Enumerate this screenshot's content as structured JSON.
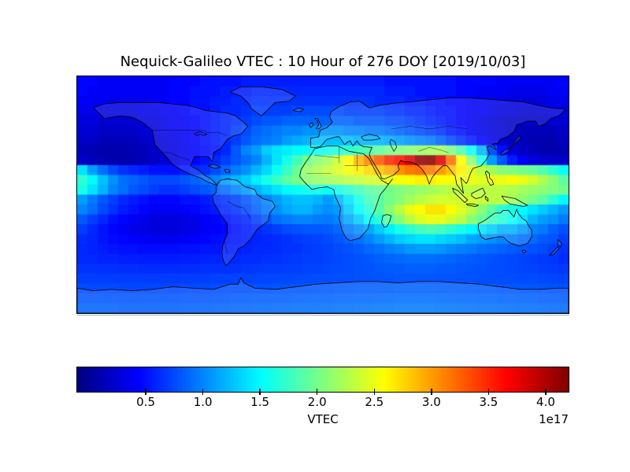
{
  "figure": {
    "title": "Nequick-Galileo VTEC : 10 Hour of 276 DOY [2019/10/03]",
    "background": "#ffffff"
  },
  "colorbar": {
    "label": "VTEC",
    "offset_label": "1e17",
    "ticks": [
      "0.5",
      "1.0",
      "1.5",
      "2.0",
      "2.5",
      "3.0",
      "3.5",
      "4.0"
    ],
    "tick_values": [
      0.5,
      1.0,
      1.5,
      2.0,
      2.5,
      3.0,
      3.5,
      4.0
    ],
    "vmin": -0.1,
    "vmax": 4.2,
    "colormap": "jet"
  },
  "chart_data": {
    "type": "heatmap",
    "title": "Nequick-Galileo VTEC : 10 Hour of 276 DOY [2019/10/03]",
    "colormap": "jet",
    "value_label": "VTEC",
    "value_scale": "1e17",
    "vmin": -0.1,
    "vmax": 4.2,
    "x_axis": {
      "name": "longitude_deg",
      "min": -180,
      "max": 180
    },
    "y_axis": {
      "name": "latitude_deg",
      "min": 90,
      "max": -90
    },
    "n_cols": 48,
    "n_rows": 24,
    "grid_off": true,
    "legend": "colorbar-horizontal-bottom",
    "values": [
      [
        0.45,
        0.45,
        0.4,
        0.4,
        0.4,
        0.4,
        0.4,
        0.4,
        0.4,
        0.45,
        0.45,
        0.45,
        0.5,
        0.5,
        0.5,
        0.5,
        0.55,
        0.55,
        0.55,
        0.55,
        0.55,
        0.55,
        0.55,
        0.55,
        0.55,
        0.55,
        0.55,
        0.55,
        0.55,
        0.55,
        0.5,
        0.5,
        0.5,
        0.5,
        0.5,
        0.5,
        0.5,
        0.45,
        0.45,
        0.45,
        0.45,
        0.4,
        0.4,
        0.4,
        0.4,
        0.4,
        0.4,
        0.45
      ],
      [
        0.45,
        0.4,
        0.4,
        0.4,
        0.4,
        0.4,
        0.4,
        0.4,
        0.4,
        0.45,
        0.45,
        0.5,
        0.5,
        0.5,
        0.55,
        0.55,
        0.55,
        0.6,
        0.6,
        0.6,
        0.6,
        0.6,
        0.6,
        0.6,
        0.6,
        0.6,
        0.6,
        0.6,
        0.6,
        0.6,
        0.55,
        0.55,
        0.55,
        0.5,
        0.5,
        0.5,
        0.5,
        0.45,
        0.45,
        0.4,
        0.4,
        0.4,
        0.35,
        0.35,
        0.35,
        0.35,
        0.4,
        0.4
      ],
      [
        0.4,
        0.4,
        0.4,
        0.35,
        0.35,
        0.35,
        0.35,
        0.4,
        0.4,
        0.45,
        0.45,
        0.5,
        0.5,
        0.55,
        0.55,
        0.6,
        0.6,
        0.65,
        0.65,
        0.65,
        0.65,
        0.65,
        0.65,
        0.65,
        0.65,
        0.65,
        0.65,
        0.65,
        0.65,
        0.6,
        0.6,
        0.6,
        0.55,
        0.55,
        0.5,
        0.5,
        0.45,
        0.45,
        0.4,
        0.4,
        0.35,
        0.35,
        0.3,
        0.3,
        0.3,
        0.3,
        0.35,
        0.35
      ],
      [
        0.35,
        0.35,
        0.3,
        0.3,
        0.3,
        0.3,
        0.35,
        0.35,
        0.4,
        0.4,
        0.45,
        0.5,
        0.5,
        0.55,
        0.6,
        0.6,
        0.65,
        0.7,
        0.7,
        0.7,
        0.7,
        0.75,
        0.75,
        0.75,
        0.75,
        0.75,
        0.7,
        0.7,
        0.7,
        0.7,
        0.65,
        0.65,
        0.6,
        0.6,
        0.55,
        0.5,
        0.5,
        0.45,
        0.4,
        0.4,
        0.35,
        0.3,
        0.3,
        0.25,
        0.25,
        0.25,
        0.3,
        0.3
      ],
      [
        0.3,
        0.3,
        0.25,
        0.25,
        0.25,
        0.25,
        0.3,
        0.3,
        0.35,
        0.4,
        0.4,
        0.45,
        0.5,
        0.55,
        0.6,
        0.65,
        0.7,
        0.75,
        0.8,
        0.8,
        0.85,
        0.85,
        0.85,
        0.85,
        0.85,
        0.85,
        0.85,
        0.8,
        0.8,
        0.8,
        0.75,
        0.75,
        0.7,
        0.65,
        0.6,
        0.55,
        0.5,
        0.45,
        0.4,
        0.35,
        0.3,
        0.25,
        0.2,
        0.2,
        0.2,
        0.2,
        0.25,
        0.25
      ],
      [
        0.25,
        0.25,
        0.2,
        0.2,
        0.2,
        0.2,
        0.25,
        0.3,
        0.35,
        0.4,
        0.4,
        0.45,
        0.5,
        0.55,
        0.6,
        0.7,
        0.75,
        0.85,
        0.9,
        0.95,
        1.0,
        1.0,
        1.05,
        1.05,
        1.05,
        1.05,
        1.0,
        1.0,
        0.95,
        0.95,
        0.9,
        0.85,
        0.8,
        0.75,
        0.7,
        0.65,
        0.55,
        0.5,
        0.4,
        0.35,
        0.3,
        0.25,
        0.2,
        0.15,
        0.15,
        0.15,
        0.15,
        0.2
      ],
      [
        0.2,
        0.2,
        0.15,
        0.15,
        0.15,
        0.15,
        0.2,
        0.25,
        0.3,
        0.35,
        0.4,
        0.45,
        0.5,
        0.55,
        0.6,
        0.7,
        0.8,
        0.9,
        0.95,
        1.0,
        1.1,
        1.15,
        1.2,
        1.25,
        1.25,
        1.25,
        1.25,
        1.2,
        1.2,
        1.2,
        1.15,
        1.1,
        1.05,
        1.0,
        0.95,
        0.85,
        0.75,
        0.65,
        0.55,
        0.45,
        0.35,
        0.25,
        0.2,
        0.15,
        0.1,
        0.1,
        0.1,
        0.15
      ],
      [
        0.15,
        0.12,
        0.1,
        0.1,
        0.1,
        0.12,
        0.15,
        0.2,
        0.28,
        0.32,
        0.38,
        0.42,
        0.48,
        0.52,
        0.6,
        0.8,
        1.0,
        1.1,
        1.3,
        1.4,
        1.45,
        1.5,
        1.55,
        1.55,
        1.6,
        1.65,
        1.7,
        1.8,
        1.85,
        1.9,
        2.0,
        2.05,
        2.1,
        2.15,
        2.2,
        2.2,
        2.05,
        1.85,
        1.55,
        1.2,
        0.8,
        0.5,
        0.3,
        0.2,
        0.15,
        0.1,
        0.1,
        0.12
      ],
      [
        0.2,
        0.15,
        0.12,
        0.1,
        0.1,
        0.12,
        0.15,
        0.2,
        0.25,
        0.3,
        0.38,
        0.45,
        0.52,
        0.6,
        0.7,
        0.8,
        0.9,
        1.0,
        1.2,
        1.4,
        1.6,
        1.8,
        2.0,
        2.1,
        2.2,
        2.4,
        2.6,
        2.9,
        3.1,
        3.3,
        3.5,
        3.6,
        3.8,
        4.1,
        4.15,
        3.8,
        3.2,
        2.6,
        2.1,
        1.6,
        1.1,
        0.8,
        0.55,
        0.4,
        0.3,
        0.25,
        0.22,
        0.2
      ],
      [
        1.4,
        1.1,
        0.9,
        0.75,
        0.65,
        0.6,
        0.55,
        0.5,
        0.5,
        0.5,
        0.55,
        0.6,
        0.65,
        0.75,
        0.85,
        0.95,
        1.05,
        1.2,
        1.35,
        1.55,
        1.75,
        1.95,
        2.15,
        2.25,
        2.35,
        2.45,
        2.55,
        2.65,
        2.75,
        2.85,
        2.95,
        3.05,
        3.15,
        3.2,
        3.15,
        3.0,
        2.85,
        2.65,
        2.45,
        2.3,
        2.2,
        2.1,
        2.05,
        2.0,
        1.95,
        1.85,
        1.7,
        1.55
      ],
      [
        1.7,
        1.5,
        1.25,
        1.05,
        0.9,
        0.85,
        0.8,
        0.75,
        0.75,
        0.75,
        0.8,
        0.85,
        0.9,
        1.0,
        1.1,
        1.2,
        1.3,
        1.45,
        1.6,
        1.75,
        1.9,
        2.0,
        2.1,
        2.15,
        2.2,
        2.25,
        2.3,
        2.35,
        2.4,
        2.45,
        2.5,
        2.55,
        2.6,
        2.65,
        2.65,
        2.6,
        2.55,
        2.5,
        2.5,
        2.45,
        2.5,
        2.5,
        2.55,
        2.5,
        2.4,
        2.25,
        2.1,
        1.9
      ],
      [
        1.6,
        1.4,
        1.2,
        1.0,
        0.9,
        0.8,
        0.75,
        0.7,
        0.65,
        0.65,
        0.7,
        0.75,
        0.8,
        0.85,
        0.9,
        1.0,
        1.1,
        1.2,
        1.3,
        1.4,
        1.5,
        1.55,
        1.6,
        1.6,
        1.55,
        1.6,
        1.7,
        1.8,
        1.9,
        1.95,
        2.0,
        2.05,
        2.1,
        2.15,
        2.2,
        2.25,
        2.3,
        2.3,
        2.3,
        2.3,
        2.3,
        2.3,
        2.25,
        2.2,
        2.15,
        2.1,
        2.05,
        2.0
      ],
      [
        1.1,
        0.95,
        0.8,
        0.7,
        0.6,
        0.55,
        0.5,
        0.45,
        0.45,
        0.45,
        0.5,
        0.5,
        0.55,
        0.6,
        0.65,
        0.7,
        0.8,
        0.9,
        1.0,
        1.1,
        1.2,
        1.25,
        1.25,
        1.2,
        1.1,
        1.2,
        1.4,
        1.6,
        1.8,
        1.9,
        2.0,
        2.1,
        2.2,
        2.3,
        2.35,
        2.4,
        2.4,
        2.4,
        2.4,
        2.35,
        2.3,
        2.3,
        2.2,
        2.1,
        2.0,
        1.9,
        1.7,
        1.5
      ],
      [
        1.0,
        0.9,
        0.75,
        0.65,
        0.55,
        0.5,
        0.45,
        0.4,
        0.4,
        0.4,
        0.42,
        0.45,
        0.5,
        0.55,
        0.6,
        0.65,
        0.75,
        0.85,
        0.95,
        1.05,
        1.15,
        1.2,
        1.2,
        1.1,
        1.05,
        1.1,
        1.3,
        1.5,
        1.7,
        1.9,
        2.1,
        2.3,
        2.5,
        2.6,
        2.7,
        2.7,
        2.6,
        2.45,
        2.3,
        2.1,
        1.9,
        1.7,
        1.6,
        1.5,
        1.4,
        1.3,
        1.2,
        1.1
      ],
      [
        0.8,
        0.7,
        0.6,
        0.5,
        0.45,
        0.4,
        0.35,
        0.3,
        0.3,
        0.3,
        0.32,
        0.35,
        0.4,
        0.45,
        0.5,
        0.55,
        0.6,
        0.7,
        0.8,
        0.9,
        0.95,
        1.0,
        1.0,
        0.95,
        0.95,
        1.0,
        1.15,
        1.3,
        1.5,
        1.7,
        1.9,
        2.1,
        2.3,
        2.45,
        2.5,
        2.5,
        2.4,
        2.3,
        2.1,
        1.95,
        1.8,
        1.7,
        1.55,
        1.4,
        1.2,
        1.1,
        1.05,
        0.95
      ],
      [
        0.7,
        0.6,
        0.52,
        0.45,
        0.4,
        0.35,
        0.32,
        0.3,
        0.3,
        0.3,
        0.32,
        0.35,
        0.4,
        0.42,
        0.45,
        0.5,
        0.55,
        0.6,
        0.65,
        0.7,
        0.75,
        0.78,
        0.8,
        0.8,
        0.82,
        0.88,
        0.95,
        1.05,
        1.15,
        1.3,
        1.45,
        1.6,
        1.7,
        1.8,
        1.85,
        1.8,
        1.7,
        1.6,
        1.5,
        1.4,
        1.3,
        1.2,
        1.2,
        1.1,
        1.0,
        0.95,
        0.85,
        0.78
      ],
      [
        0.62,
        0.58,
        0.52,
        0.48,
        0.45,
        0.42,
        0.4,
        0.38,
        0.38,
        0.38,
        0.4,
        0.42,
        0.45,
        0.48,
        0.5,
        0.52,
        0.55,
        0.58,
        0.6,
        0.62,
        0.65,
        0.68,
        0.7,
        0.72,
        0.75,
        0.8,
        0.85,
        0.92,
        1.0,
        1.1,
        1.2,
        1.3,
        1.35,
        1.4,
        1.4,
        1.35,
        1.3,
        1.25,
        1.15,
        1.1,
        1.05,
        1.0,
        0.95,
        0.9,
        0.88,
        0.82,
        0.78,
        0.7
      ],
      [
        0.6,
        0.58,
        0.55,
        0.52,
        0.5,
        0.5,
        0.48,
        0.48,
        0.48,
        0.48,
        0.5,
        0.5,
        0.52,
        0.52,
        0.55,
        0.55,
        0.58,
        0.6,
        0.6,
        0.62,
        0.65,
        0.65,
        0.68,
        0.7,
        0.72,
        0.75,
        0.78,
        0.82,
        0.88,
        0.92,
        0.98,
        1.02,
        1.08,
        1.1,
        1.1,
        1.08,
        1.02,
        0.98,
        0.95,
        0.9,
        0.88,
        0.85,
        0.82,
        0.8,
        0.78,
        0.75,
        0.7,
        0.65
      ],
      [
        0.6,
        0.6,
        0.58,
        0.58,
        0.56,
        0.56,
        0.55,
        0.55,
        0.55,
        0.55,
        0.56,
        0.56,
        0.58,
        0.58,
        0.6,
        0.6,
        0.62,
        0.62,
        0.64,
        0.65,
        0.66,
        0.68,
        0.7,
        0.7,
        0.72,
        0.74,
        0.76,
        0.78,
        0.8,
        0.84,
        0.86,
        0.88,
        0.9,
        0.9,
        0.9,
        0.88,
        0.86,
        0.84,
        0.82,
        0.8,
        0.78,
        0.76,
        0.74,
        0.72,
        0.7,
        0.68,
        0.66,
        0.62
      ],
      [
        0.65,
        0.65,
        0.64,
        0.64,
        0.63,
        0.63,
        0.62,
        0.62,
        0.62,
        0.62,
        0.63,
        0.63,
        0.64,
        0.64,
        0.65,
        0.65,
        0.66,
        0.67,
        0.68,
        0.69,
        0.7,
        0.7,
        0.72,
        0.72,
        0.74,
        0.75,
        0.76,
        0.78,
        0.79,
        0.8,
        0.82,
        0.82,
        0.84,
        0.84,
        0.84,
        0.82,
        0.82,
        0.8,
        0.79,
        0.78,
        0.76,
        0.75,
        0.74,
        0.73,
        0.72,
        0.7,
        0.69,
        0.67
      ],
      [
        0.7,
        0.7,
        0.7,
        0.7,
        0.69,
        0.69,
        0.69,
        0.69,
        0.69,
        0.69,
        0.7,
        0.7,
        0.7,
        0.71,
        0.71,
        0.72,
        0.72,
        0.73,
        0.73,
        0.74,
        0.74,
        0.75,
        0.75,
        0.76,
        0.76,
        0.77,
        0.77,
        0.78,
        0.78,
        0.79,
        0.79,
        0.8,
        0.8,
        0.8,
        0.8,
        0.79,
        0.79,
        0.78,
        0.78,
        0.77,
        0.77,
        0.76,
        0.76,
        0.75,
        0.75,
        0.74,
        0.73,
        0.72
      ],
      [
        0.75,
        0.75,
        0.75,
        0.75,
        0.74,
        0.74,
        0.74,
        0.74,
        0.74,
        0.74,
        0.75,
        0.75,
        0.75,
        0.76,
        0.76,
        0.77,
        0.77,
        0.78,
        0.78,
        0.79,
        0.79,
        0.8,
        0.8,
        0.81,
        0.81,
        0.82,
        0.82,
        0.83,
        0.83,
        0.84,
        0.84,
        0.85,
        0.85,
        0.85,
        0.85,
        0.84,
        0.84,
        0.83,
        0.83,
        0.82,
        0.82,
        0.81,
        0.81,
        0.8,
        0.8,
        0.79,
        0.78,
        0.77
      ],
      [
        0.8,
        0.8,
        0.8,
        0.8,
        0.79,
        0.79,
        0.79,
        0.79,
        0.79,
        0.79,
        0.8,
        0.8,
        0.8,
        0.81,
        0.81,
        0.82,
        0.82,
        0.83,
        0.83,
        0.84,
        0.84,
        0.85,
        0.85,
        0.86,
        0.86,
        0.87,
        0.87,
        0.88,
        0.88,
        0.89,
        0.89,
        0.9,
        0.9,
        0.9,
        0.9,
        0.89,
        0.89,
        0.88,
        0.88,
        0.87,
        0.87,
        0.86,
        0.86,
        0.85,
        0.85,
        0.84,
        0.83,
        0.82
      ],
      [
        0.85,
        0.85,
        0.85,
        0.85,
        0.84,
        0.84,
        0.84,
        0.84,
        0.84,
        0.84,
        0.85,
        0.85,
        0.85,
        0.86,
        0.86,
        0.87,
        0.87,
        0.88,
        0.88,
        0.89,
        0.89,
        0.9,
        0.9,
        0.91,
        0.91,
        0.92,
        0.92,
        0.93,
        0.93,
        0.94,
        0.94,
        0.95,
        0.95,
        0.95,
        0.95,
        0.94,
        0.94,
        0.93,
        0.93,
        0.92,
        0.92,
        0.91,
        0.91,
        0.9,
        0.9,
        0.89,
        0.88,
        0.87
      ]
    ]
  }
}
